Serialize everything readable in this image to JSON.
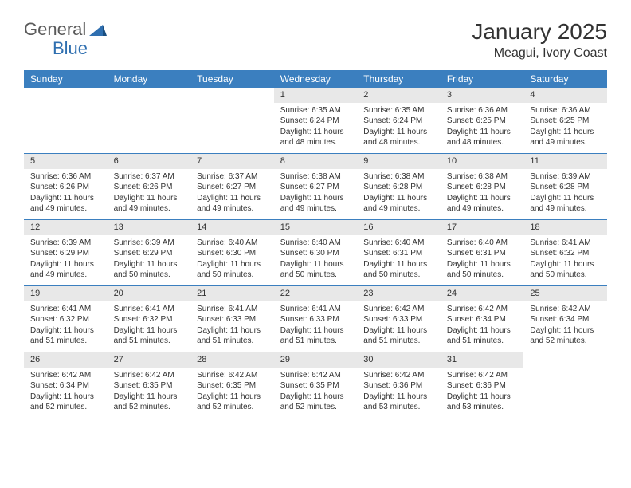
{
  "logo": {
    "general": "General",
    "blue": "Blue"
  },
  "title": "January 2025",
  "location": "Meagui, Ivory Coast",
  "colors": {
    "header_bg": "#3b7fbf",
    "header_text": "#ffffff",
    "daynum_bg": "#e8e8e8",
    "text": "#333333",
    "logo_gray": "#5a5a5a",
    "logo_blue": "#2f6fb0",
    "rule": "#3b7fbf"
  },
  "dayNames": [
    "Sunday",
    "Monday",
    "Tuesday",
    "Wednesday",
    "Thursday",
    "Friday",
    "Saturday"
  ],
  "weeks": [
    [
      {
        "n": "",
        "sr": "",
        "ss": "",
        "dl": ""
      },
      {
        "n": "",
        "sr": "",
        "ss": "",
        "dl": ""
      },
      {
        "n": "",
        "sr": "",
        "ss": "",
        "dl": ""
      },
      {
        "n": "1",
        "sr": "Sunrise: 6:35 AM",
        "ss": "Sunset: 6:24 PM",
        "dl": "Daylight: 11 hours and 48 minutes."
      },
      {
        "n": "2",
        "sr": "Sunrise: 6:35 AM",
        "ss": "Sunset: 6:24 PM",
        "dl": "Daylight: 11 hours and 48 minutes."
      },
      {
        "n": "3",
        "sr": "Sunrise: 6:36 AM",
        "ss": "Sunset: 6:25 PM",
        "dl": "Daylight: 11 hours and 48 minutes."
      },
      {
        "n": "4",
        "sr": "Sunrise: 6:36 AM",
        "ss": "Sunset: 6:25 PM",
        "dl": "Daylight: 11 hours and 49 minutes."
      }
    ],
    [
      {
        "n": "5",
        "sr": "Sunrise: 6:36 AM",
        "ss": "Sunset: 6:26 PM",
        "dl": "Daylight: 11 hours and 49 minutes."
      },
      {
        "n": "6",
        "sr": "Sunrise: 6:37 AM",
        "ss": "Sunset: 6:26 PM",
        "dl": "Daylight: 11 hours and 49 minutes."
      },
      {
        "n": "7",
        "sr": "Sunrise: 6:37 AM",
        "ss": "Sunset: 6:27 PM",
        "dl": "Daylight: 11 hours and 49 minutes."
      },
      {
        "n": "8",
        "sr": "Sunrise: 6:38 AM",
        "ss": "Sunset: 6:27 PM",
        "dl": "Daylight: 11 hours and 49 minutes."
      },
      {
        "n": "9",
        "sr": "Sunrise: 6:38 AM",
        "ss": "Sunset: 6:28 PM",
        "dl": "Daylight: 11 hours and 49 minutes."
      },
      {
        "n": "10",
        "sr": "Sunrise: 6:38 AM",
        "ss": "Sunset: 6:28 PM",
        "dl": "Daylight: 11 hours and 49 minutes."
      },
      {
        "n": "11",
        "sr": "Sunrise: 6:39 AM",
        "ss": "Sunset: 6:28 PM",
        "dl": "Daylight: 11 hours and 49 minutes."
      }
    ],
    [
      {
        "n": "12",
        "sr": "Sunrise: 6:39 AM",
        "ss": "Sunset: 6:29 PM",
        "dl": "Daylight: 11 hours and 49 minutes."
      },
      {
        "n": "13",
        "sr": "Sunrise: 6:39 AM",
        "ss": "Sunset: 6:29 PM",
        "dl": "Daylight: 11 hours and 50 minutes."
      },
      {
        "n": "14",
        "sr": "Sunrise: 6:40 AM",
        "ss": "Sunset: 6:30 PM",
        "dl": "Daylight: 11 hours and 50 minutes."
      },
      {
        "n": "15",
        "sr": "Sunrise: 6:40 AM",
        "ss": "Sunset: 6:30 PM",
        "dl": "Daylight: 11 hours and 50 minutes."
      },
      {
        "n": "16",
        "sr": "Sunrise: 6:40 AM",
        "ss": "Sunset: 6:31 PM",
        "dl": "Daylight: 11 hours and 50 minutes."
      },
      {
        "n": "17",
        "sr": "Sunrise: 6:40 AM",
        "ss": "Sunset: 6:31 PM",
        "dl": "Daylight: 11 hours and 50 minutes."
      },
      {
        "n": "18",
        "sr": "Sunrise: 6:41 AM",
        "ss": "Sunset: 6:32 PM",
        "dl": "Daylight: 11 hours and 50 minutes."
      }
    ],
    [
      {
        "n": "19",
        "sr": "Sunrise: 6:41 AM",
        "ss": "Sunset: 6:32 PM",
        "dl": "Daylight: 11 hours and 51 minutes."
      },
      {
        "n": "20",
        "sr": "Sunrise: 6:41 AM",
        "ss": "Sunset: 6:32 PM",
        "dl": "Daylight: 11 hours and 51 minutes."
      },
      {
        "n": "21",
        "sr": "Sunrise: 6:41 AM",
        "ss": "Sunset: 6:33 PM",
        "dl": "Daylight: 11 hours and 51 minutes."
      },
      {
        "n": "22",
        "sr": "Sunrise: 6:41 AM",
        "ss": "Sunset: 6:33 PM",
        "dl": "Daylight: 11 hours and 51 minutes."
      },
      {
        "n": "23",
        "sr": "Sunrise: 6:42 AM",
        "ss": "Sunset: 6:33 PM",
        "dl": "Daylight: 11 hours and 51 minutes."
      },
      {
        "n": "24",
        "sr": "Sunrise: 6:42 AM",
        "ss": "Sunset: 6:34 PM",
        "dl": "Daylight: 11 hours and 51 minutes."
      },
      {
        "n": "25",
        "sr": "Sunrise: 6:42 AM",
        "ss": "Sunset: 6:34 PM",
        "dl": "Daylight: 11 hours and 52 minutes."
      }
    ],
    [
      {
        "n": "26",
        "sr": "Sunrise: 6:42 AM",
        "ss": "Sunset: 6:34 PM",
        "dl": "Daylight: 11 hours and 52 minutes."
      },
      {
        "n": "27",
        "sr": "Sunrise: 6:42 AM",
        "ss": "Sunset: 6:35 PM",
        "dl": "Daylight: 11 hours and 52 minutes."
      },
      {
        "n": "28",
        "sr": "Sunrise: 6:42 AM",
        "ss": "Sunset: 6:35 PM",
        "dl": "Daylight: 11 hours and 52 minutes."
      },
      {
        "n": "29",
        "sr": "Sunrise: 6:42 AM",
        "ss": "Sunset: 6:35 PM",
        "dl": "Daylight: 11 hours and 52 minutes."
      },
      {
        "n": "30",
        "sr": "Sunrise: 6:42 AM",
        "ss": "Sunset: 6:36 PM",
        "dl": "Daylight: 11 hours and 53 minutes."
      },
      {
        "n": "31",
        "sr": "Sunrise: 6:42 AM",
        "ss": "Sunset: 6:36 PM",
        "dl": "Daylight: 11 hours and 53 minutes."
      },
      {
        "n": "",
        "sr": "",
        "ss": "",
        "dl": ""
      }
    ]
  ]
}
